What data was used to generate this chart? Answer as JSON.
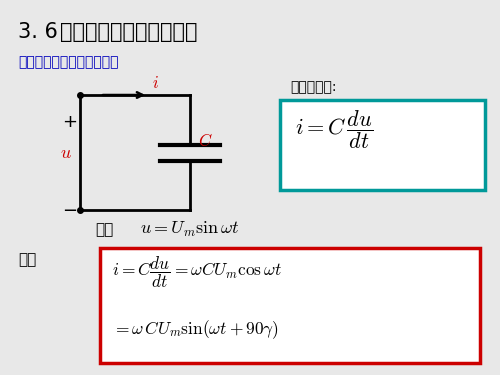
{
  "bg_color": "#e8e8e8",
  "white": "#ffffff",
  "black": "#000000",
  "red": "#cc0000",
  "blue": "#0000bb",
  "teal": "#009999",
  "title_normal": "3. 6  ",
  "title_bold": "电容元件的正弦交流电路",
  "subtitle": "一、电压与电流之间的关系",
  "jiben": "基本关系式:",
  "she": "设：",
  "ze": "则："
}
